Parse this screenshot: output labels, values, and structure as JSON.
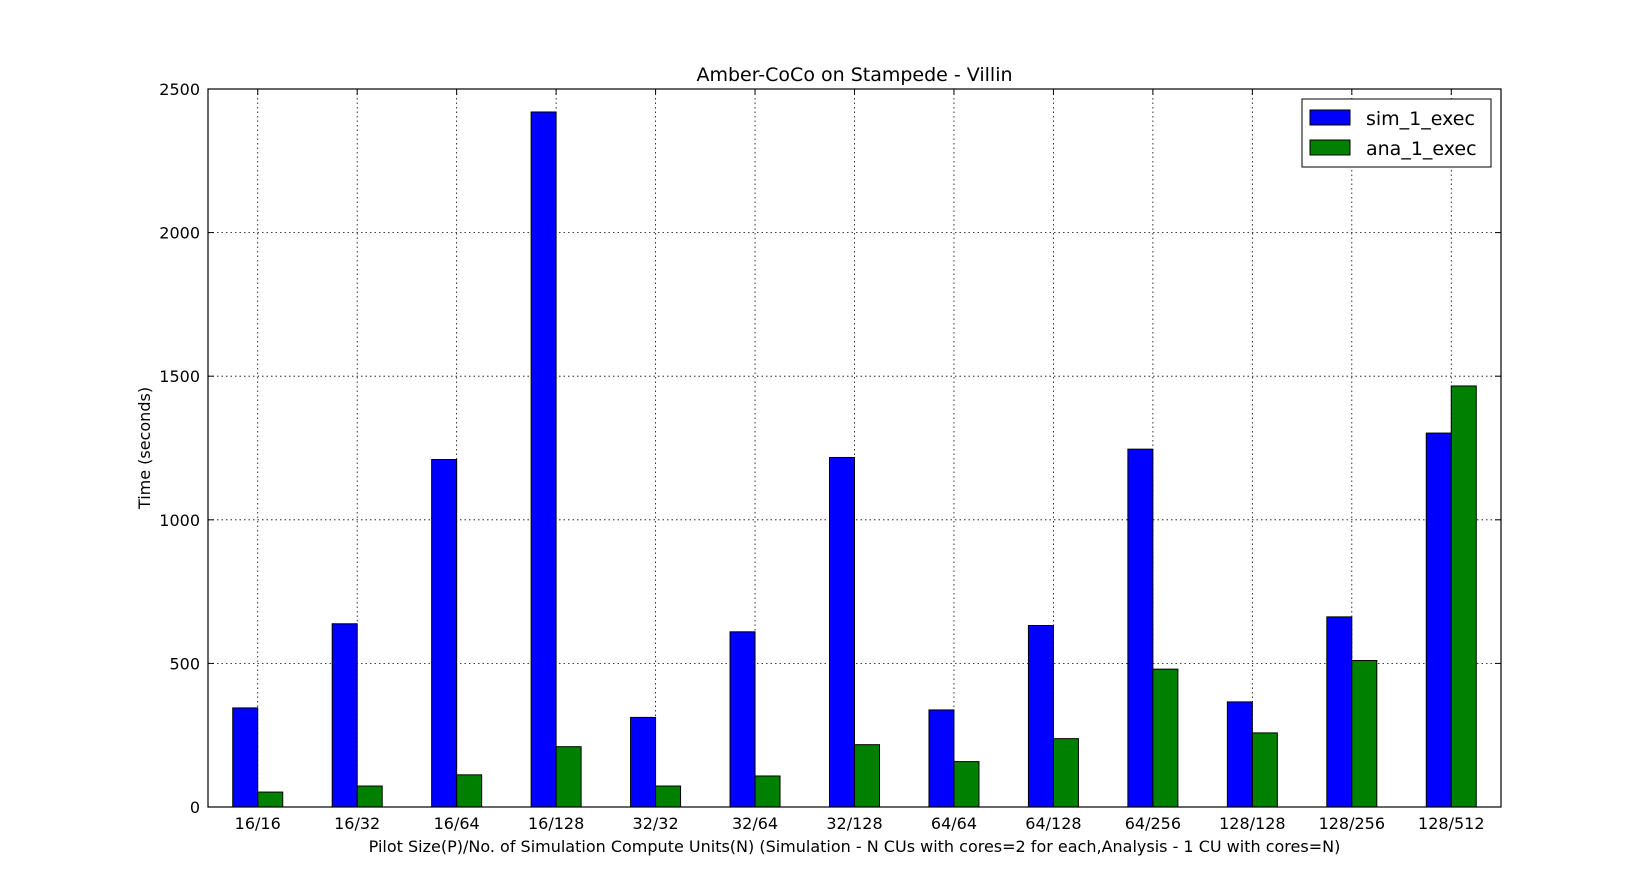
{
  "chart_data": {
    "type": "bar",
    "title": "Amber-CoCo on Stampede - Villin",
    "xlabel": "Pilot Size(P)/No. of Simulation Compute Units(N) (Simulation - N CUs with cores=2 for each,Analysis - 1 CU with cores=N)",
    "ylabel": "Time (seconds)",
    "ylim": [
      0,
      2500
    ],
    "yticks": [
      0,
      500,
      1000,
      1500,
      2000,
      2500
    ],
    "grid": true,
    "legend_position": "top-right",
    "categories": [
      "16/16",
      "16/32",
      "16/64",
      "16/128",
      "32/32",
      "32/64",
      "32/128",
      "64/64",
      "64/128",
      "64/256",
      "128/128",
      "128/256",
      "128/512"
    ],
    "series": [
      {
        "name": "sim_1_exec",
        "color": "#0000ff",
        "values": [
          345,
          638,
          1210,
          2420,
          312,
          610,
          1217,
          338,
          632,
          1246,
          366,
          662,
          1302
        ]
      },
      {
        "name": "ana_1_exec",
        "color": "#008000",
        "values": [
          52,
          73,
          112,
          210,
          73,
          108,
          217,
          158,
          238,
          480,
          258,
          510,
          1466
        ]
      }
    ]
  }
}
